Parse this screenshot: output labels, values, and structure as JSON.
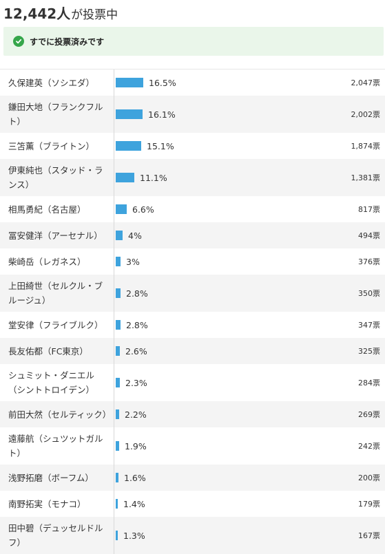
{
  "header": {
    "count": "12,442人",
    "suffix": "が投票中"
  },
  "notice": {
    "text": "すでに投票済みです",
    "icon": "check-icon",
    "icon_color": "#35a64a",
    "background": "#eaf6ea"
  },
  "bar_color": "#3ea3dd",
  "rows": [
    {
      "name": "久保建英（ソシエダ）",
      "percent": "16.5%",
      "value": 16.5,
      "votes": "2,047票"
    },
    {
      "name": "鎌田大地（フランクフルト）",
      "percent": "16.1%",
      "value": 16.1,
      "votes": "2,002票"
    },
    {
      "name": "三笘薫（ブライトン）",
      "percent": "15.1%",
      "value": 15.1,
      "votes": "1,874票"
    },
    {
      "name": "伊東純也（スタッド・ランス）",
      "percent": "11.1%",
      "value": 11.1,
      "votes": "1,381票"
    },
    {
      "name": "相馬勇紀（名古屋）",
      "percent": "6.6%",
      "value": 6.6,
      "votes": "817票"
    },
    {
      "name": "冨安健洋（アーセナル）",
      "percent": "4%",
      "value": 4,
      "votes": "494票"
    },
    {
      "name": "柴崎岳（レガネス）",
      "percent": "3%",
      "value": 3,
      "votes": "376票"
    },
    {
      "name": "上田綺世（セルクル・ブルージュ）",
      "percent": "2.8%",
      "value": 2.8,
      "votes": "350票"
    },
    {
      "name": "堂安律（フライブルク）",
      "percent": "2.8%",
      "value": 2.8,
      "votes": "347票"
    },
    {
      "name": "長友佑都（FC東京）",
      "percent": "2.6%",
      "value": 2.6,
      "votes": "325票"
    },
    {
      "name": "シュミット・ダニエル（シントトロイデン）",
      "percent": "2.3%",
      "value": 2.3,
      "votes": "284票"
    },
    {
      "name": "前田大然（セルティック）",
      "percent": "2.2%",
      "value": 2.2,
      "votes": "269票"
    },
    {
      "name": "遠藤航（シュツットガルト）",
      "percent": "1.9%",
      "value": 1.9,
      "votes": "242票"
    },
    {
      "name": "浅野拓磨（ボーフム）",
      "percent": "1.6%",
      "value": 1.6,
      "votes": "200票"
    },
    {
      "name": "南野拓実（モナコ）",
      "percent": "1.4%",
      "value": 1.4,
      "votes": "179票"
    },
    {
      "name": "田中碧（デュッセルドルフ）",
      "percent": "1.3%",
      "value": 1.3,
      "votes": "167票"
    }
  ]
}
